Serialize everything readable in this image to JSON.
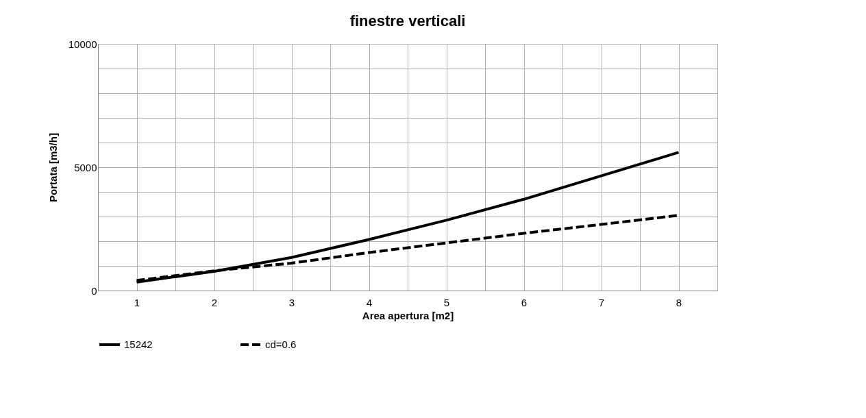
{
  "chart_data": {
    "type": "line",
    "title": "finestre verticali",
    "xlabel": "Area apertura [m2]",
    "ylabel": "Portata [m3/h]",
    "categories": [
      "1",
      "2",
      "3",
      "4",
      "5",
      "6",
      "7",
      "8"
    ],
    "ylim": [
      0,
      10000
    ],
    "yticks": [
      0,
      {
        "value": 1000,
        "label": null
      },
      {
        "value": 2000,
        "label": null
      },
      {
        "value": 3000,
        "label": null
      },
      {
        "value": 4000,
        "label": null
      },
      5000,
      {
        "value": 6000,
        "label": null
      },
      {
        "value": 7000,
        "label": null
      },
      {
        "value": 8000,
        "label": null
      },
      {
        "value": 9000,
        "label": null
      },
      10000
    ],
    "grid": true,
    "legend": "bottom",
    "marker": "none",
    "series": [
      {
        "name": "15242",
        "color": "#000000",
        "line_style": "solid",
        "values": [
          340,
          780,
          1340,
          2070,
          2850,
          3700,
          4650,
          5600
        ]
      },
      {
        "name": "cd=0.6",
        "color": "#000000",
        "line_style": "dashed",
        "values": [
          410,
          800,
          1110,
          1540,
          1930,
          2320,
          2680,
          3050
        ]
      }
    ]
  }
}
